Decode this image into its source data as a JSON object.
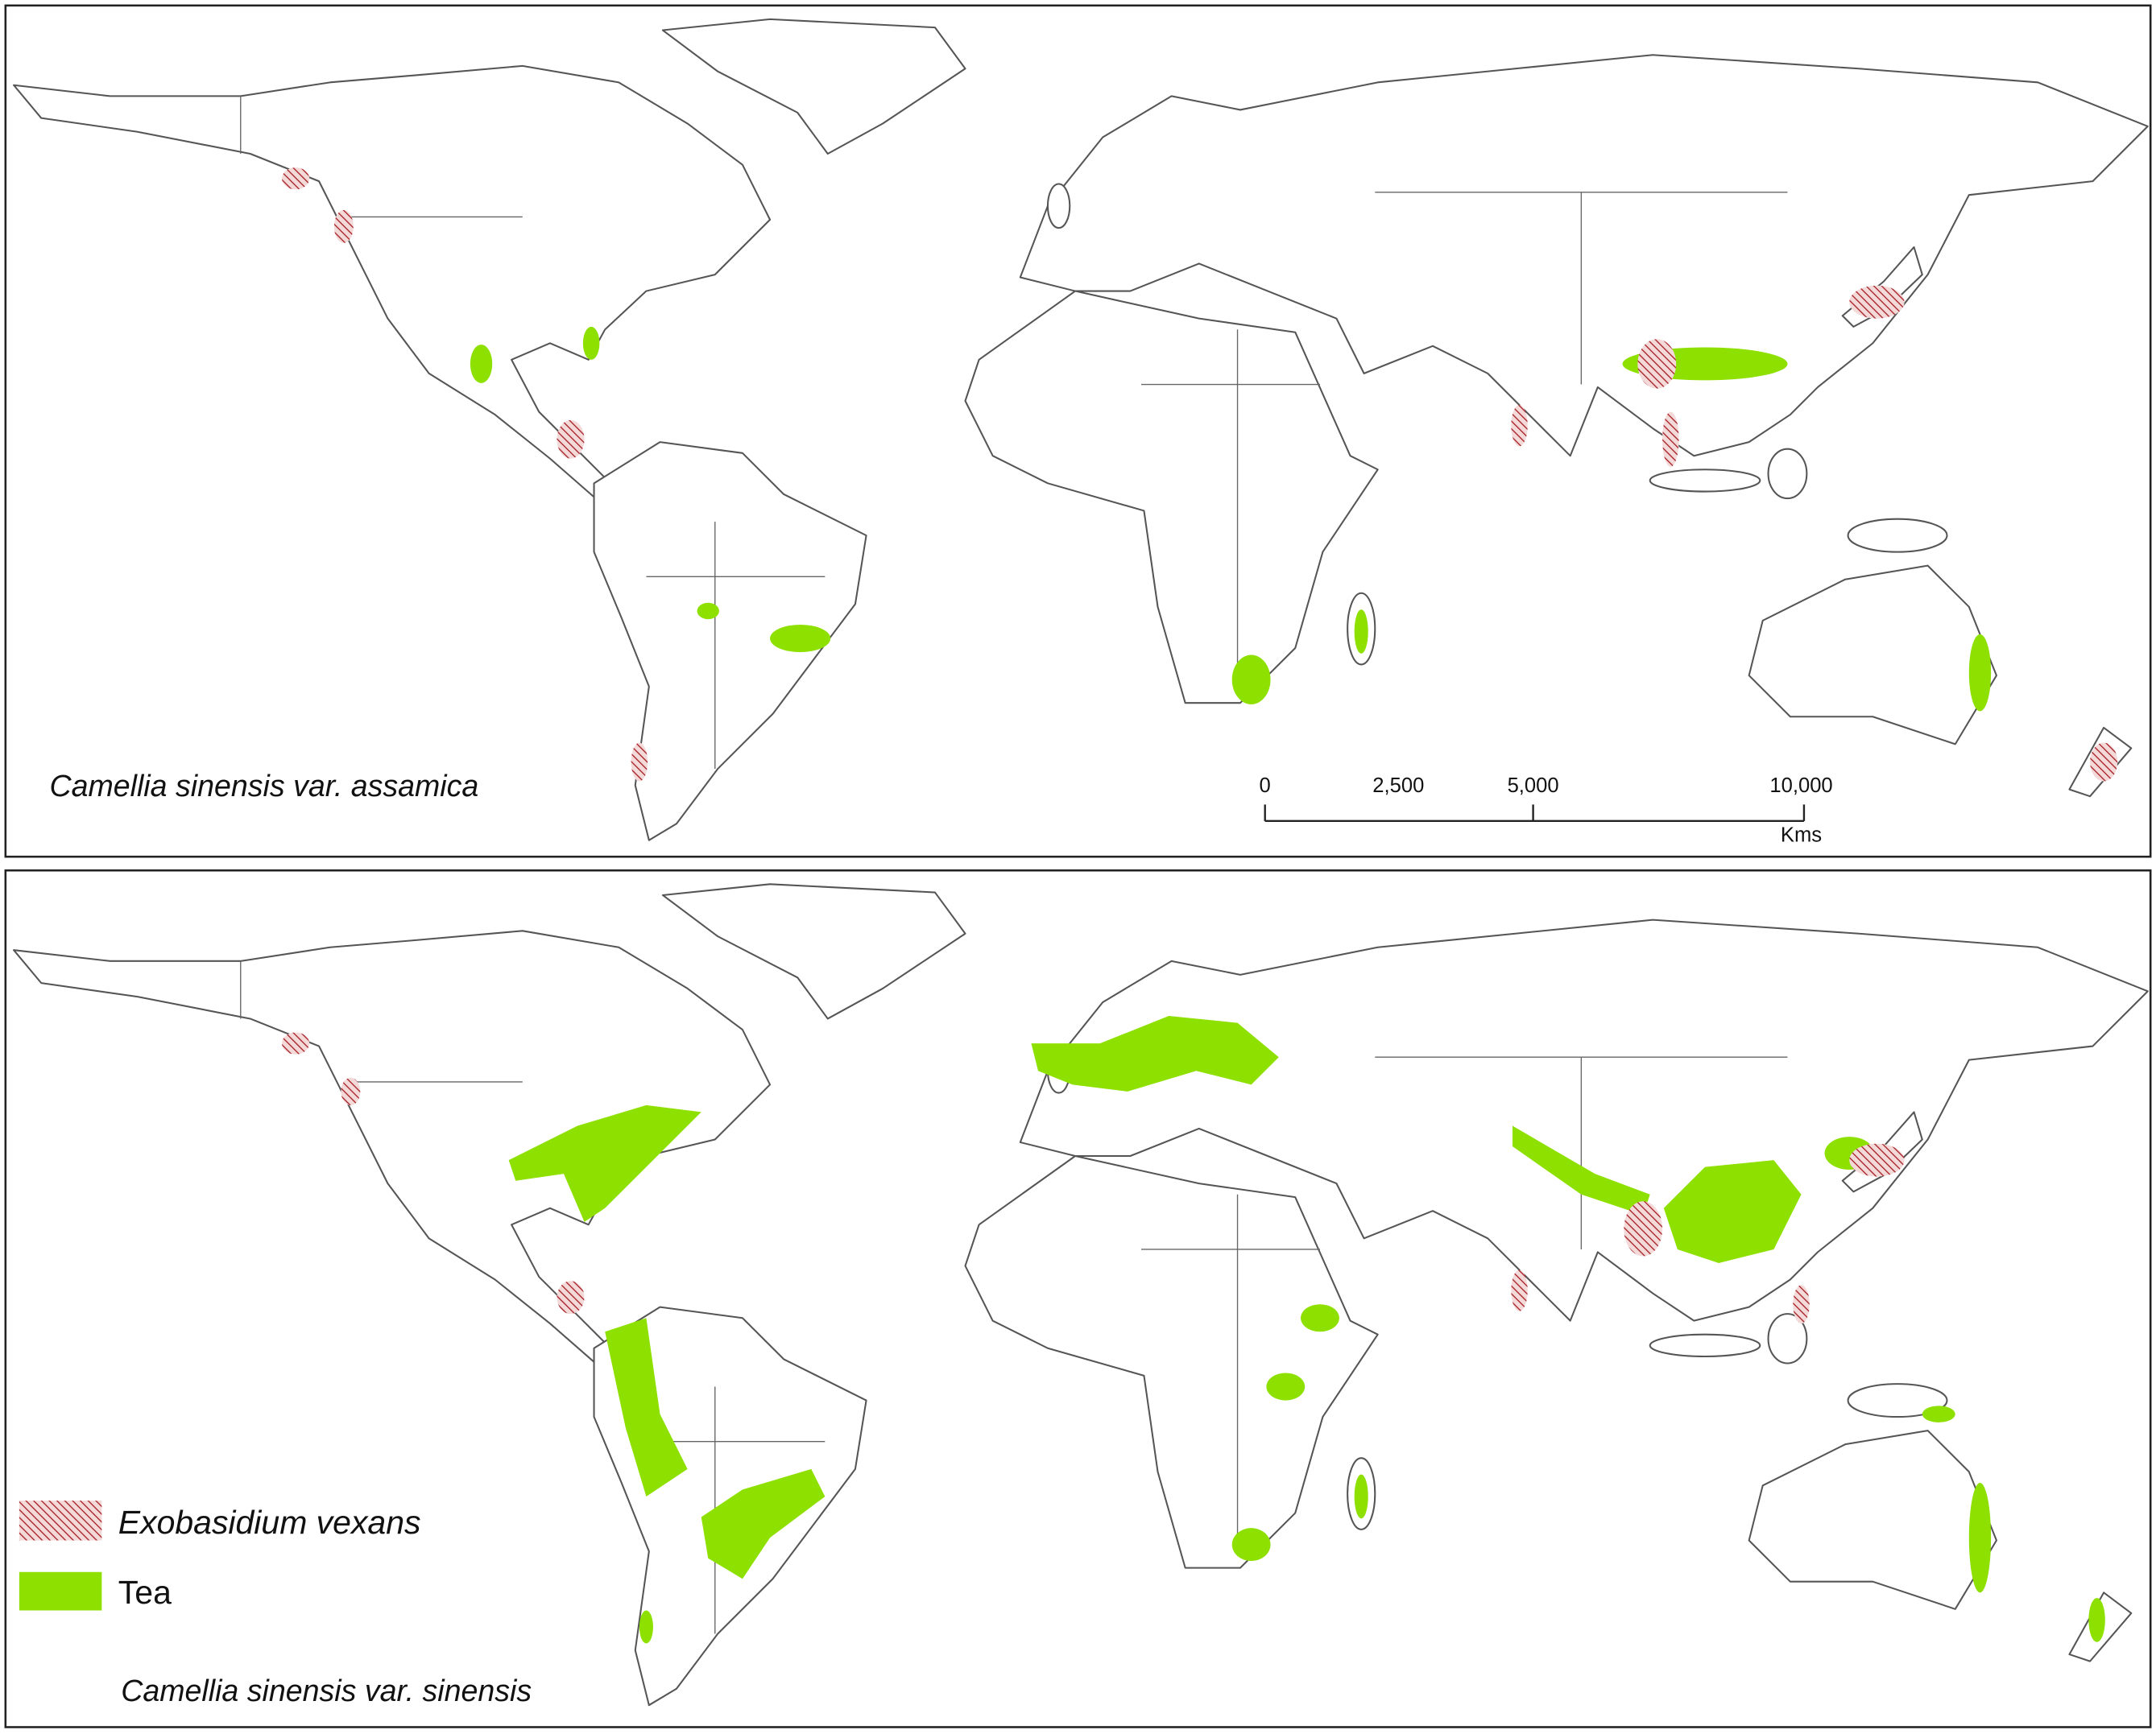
{
  "panels": [
    {
      "label": "Camellia sinensis var. assamica",
      "scale_bar": {
        "ticks": [
          "0",
          "2,500",
          "5,000",
          "10,000"
        ],
        "unit": "Kms"
      }
    },
    {
      "label": "Camellia sinensis var. sinensis",
      "legend": [
        "Exobasidium vexans",
        "Tea"
      ]
    }
  ]
}
